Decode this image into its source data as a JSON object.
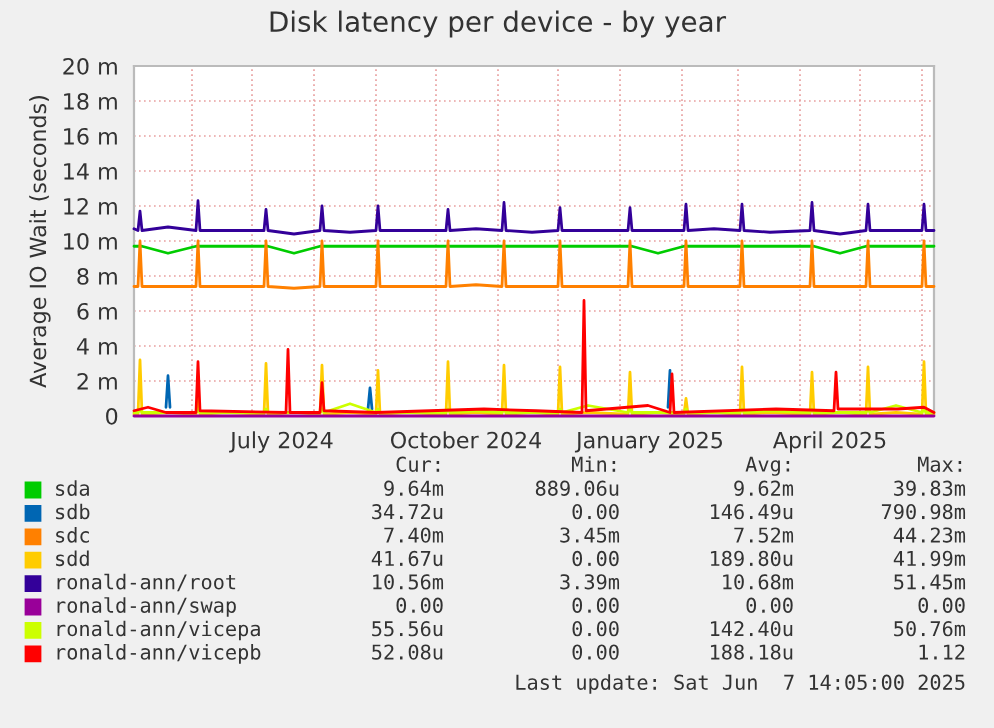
{
  "chart_data": {
    "type": "line",
    "title": "Disk latency per device - by year",
    "ylabel": "Average IO Wait (seconds)",
    "x": [
      "2024-05-03",
      "2024-05-05",
      "2024-05-06",
      "2024-05-07",
      "2024-05-20",
      "2024-06-03",
      "2024-06-04",
      "2024-06-05",
      "2024-06-18",
      "2024-07-07",
      "2024-07-08",
      "2024-07-09",
      "2024-07-22",
      "2024-08-04",
      "2024-08-05",
      "2024-08-06",
      "2024-08-19",
      "2024-09-01",
      "2024-09-02",
      "2024-09-03",
      "2024-09-16",
      "2024-10-06",
      "2024-10-07",
      "2024-10-08",
      "2024-10-21",
      "2024-11-03",
      "2024-11-04",
      "2024-11-05",
      "2024-11-18",
      "2024-12-01",
      "2024-12-02",
      "2024-12-03",
      "2024-12-16",
      "2025-01-05",
      "2025-01-06",
      "2025-01-07",
      "2025-01-20",
      "2025-02-02",
      "2025-02-03",
      "2025-02-04",
      "2025-02-17",
      "2025-03-02",
      "2025-03-03",
      "2025-03-04",
      "2025-03-17",
      "2025-04-06",
      "2025-04-07",
      "2025-04-08",
      "2025-04-21",
      "2025-05-04",
      "2025-05-05",
      "2025-05-06",
      "2025-05-19",
      "2025-06-01",
      "2025-06-02",
      "2025-06-03",
      "2025-06-07"
    ],
    "series": [
      {
        "name": "sda",
        "color": "#00cc00",
        "values": [
          9.7,
          9.7,
          9.7,
          9.7,
          9.3,
          9.7,
          9.7,
          9.7,
          9.7,
          9.7,
          9.7,
          9.7,
          9.3,
          9.7,
          9.7,
          9.7,
          9.7,
          9.7,
          9.7,
          9.7,
          9.7,
          9.7,
          9.7,
          9.7,
          9.7,
          9.7,
          9.7,
          9.7,
          9.7,
          9.7,
          9.7,
          9.7,
          9.7,
          9.7,
          9.7,
          9.7,
          9.3,
          9.7,
          9.7,
          9.7,
          9.7,
          9.7,
          9.7,
          9.7,
          9.7,
          9.7,
          9.7,
          9.7,
          9.3,
          9.7,
          9.7,
          9.7,
          9.7,
          9.7,
          9.7,
          9.7,
          9.7
        ]
      },
      {
        "name": "sdb",
        "color": "#0066b3",
        "x": [
          "2024-05-19",
          "2024-05-20",
          "2024-05-21",
          "2024-05-22",
          "2024-08-28",
          "2024-08-29",
          "2024-08-30",
          "2024-08-31",
          "2025-01-25",
          "2025-01-26"
        ],
        "values": [
          0.5,
          2.3,
          0.5,
          null,
          0.4,
          1.6,
          0.4,
          null,
          0.5,
          2.6
        ]
      },
      {
        "name": "sdc",
        "color": "#ff8000",
        "values": [
          7.4,
          7.4,
          10.0,
          7.4,
          7.4,
          7.4,
          10.0,
          7.4,
          7.4,
          7.4,
          10.0,
          7.4,
          7.3,
          7.4,
          10.0,
          7.4,
          7.4,
          7.4,
          10.0,
          7.4,
          7.4,
          7.4,
          10.0,
          7.4,
          7.5,
          7.4,
          10.0,
          7.4,
          7.4,
          7.4,
          10.0,
          7.4,
          7.4,
          7.4,
          10.0,
          7.4,
          7.4,
          7.4,
          10.0,
          7.4,
          7.4,
          7.4,
          10.0,
          7.4,
          7.4,
          7.4,
          10.0,
          7.4,
          7.4,
          7.4,
          10.0,
          7.4,
          7.4,
          7.4,
          10.0,
          7.4,
          7.4
        ]
      },
      {
        "name": "sdd",
        "color": "#ffcc00",
        "values": [
          0.1,
          0.1,
          3.2,
          0.1,
          0.2,
          0.1,
          1.0,
          0.1,
          0.2,
          0.1,
          3.0,
          0.1,
          0.2,
          0.1,
          2.9,
          0.1,
          0.2,
          0.1,
          2.6,
          0.1,
          0.2,
          0.1,
          3.1,
          0.1,
          0.2,
          0.1,
          2.9,
          0.1,
          0.2,
          0.1,
          2.8,
          0.1,
          0.2,
          0.1,
          2.5,
          0.1,
          0.2,
          0.1,
          1.0,
          0.1,
          0.2,
          0.1,
          2.8,
          0.1,
          0.2,
          0.1,
          2.5,
          0.1,
          0.2,
          0.1,
          2.8,
          0.1,
          0.2,
          0.1,
          3.1,
          0.1,
          0.1
        ]
      },
      {
        "name": "ronald-ann/root",
        "color": "#330099",
        "values": [
          10.7,
          10.6,
          11.7,
          10.6,
          10.8,
          10.6,
          12.3,
          10.6,
          10.6,
          10.6,
          11.8,
          10.6,
          10.4,
          10.6,
          12.0,
          10.6,
          10.5,
          10.6,
          12.0,
          10.6,
          10.6,
          10.6,
          11.8,
          10.6,
          10.7,
          10.6,
          12.2,
          10.6,
          10.5,
          10.6,
          11.9,
          10.6,
          10.6,
          10.6,
          11.9,
          10.6,
          10.6,
          10.6,
          12.1,
          10.6,
          10.7,
          10.6,
          12.1,
          10.6,
          10.5,
          10.6,
          12.2,
          10.6,
          10.4,
          10.6,
          12.1,
          10.6,
          10.6,
          10.6,
          12.1,
          10.6,
          10.6
        ]
      },
      {
        "name": "ronald-ann/swap",
        "color": "#990099",
        "x": [
          "2024-05-03",
          "2025-06-07"
        ],
        "values": [
          0,
          0
        ]
      },
      {
        "name": "ronald-ann/vicepa",
        "color": "#ccff00",
        "values": [
          0.2,
          0.2,
          0.4,
          0.2,
          0.2,
          0.2,
          0.4,
          0.2,
          0.2,
          0.2,
          0.4,
          0.2,
          0.2,
          0.2,
          0.4,
          0.2,
          0.7,
          0.2,
          0.4,
          0.2,
          0.2,
          0.2,
          0.4,
          0.2,
          0.3,
          0.2,
          0.4,
          0.2,
          0.2,
          0.2,
          0.4,
          0.2,
          0.6,
          0.2,
          0.4,
          0.2,
          0.2,
          0.2,
          0.4,
          0.2,
          0.2,
          0.2,
          0.4,
          0.2,
          0.3,
          0.2,
          0.4,
          0.2,
          0.2,
          0.2,
          0.4,
          0.2,
          0.6,
          0.2,
          0.4,
          0.2,
          0.2
        ]
      },
      {
        "name": "ronald-ann/vicepb",
        "color": "#ff0000",
        "x": [
          "2024-05-03",
          "2024-05-10",
          "2024-05-19",
          "2024-05-21",
          "2024-06-03",
          "2024-06-04",
          "2024-06-05",
          "2024-07-18",
          "2024-07-19",
          "2024-07-20",
          "2024-08-04",
          "2024-08-05",
          "2024-08-06",
          "2024-09-01",
          "2024-10-25",
          "2024-11-20",
          "2024-12-13",
          "2024-12-14",
          "2024-12-15",
          "2025-01-15",
          "2025-01-26",
          "2025-01-27",
          "2025-01-28",
          "2025-03-20",
          "2025-04-18",
          "2025-04-19",
          "2025-04-20",
          "2025-05-20",
          "2025-06-02",
          "2025-06-07"
        ],
        "values": [
          0.3,
          0.5,
          0.2,
          0.2,
          0.2,
          3.1,
          0.3,
          0.2,
          3.8,
          0.2,
          0.2,
          1.9,
          0.3,
          0.2,
          0.4,
          0.3,
          0.2,
          6.6,
          0.3,
          0.6,
          0.2,
          2.4,
          0.2,
          0.4,
          0.3,
          2.5,
          0.4,
          0.4,
          0.5,
          0.2
        ]
      }
    ],
    "xlim": [
      "2024-05-03",
      "2025-06-07"
    ],
    "xticks": [
      {
        "value": "2024-06-01",
        "label": null
      },
      {
        "value": "2024-07-01",
        "label": null
      },
      {
        "value": "2024-07-16",
        "label": "July 2024"
      },
      {
        "value": "2024-08-01",
        "label": null
      },
      {
        "value": "2024-09-01",
        "label": null
      },
      {
        "value": "2024-10-01",
        "label": null
      },
      {
        "value": "2024-10-16",
        "label": "October 2024"
      },
      {
        "value": "2024-11-01",
        "label": null
      },
      {
        "value": "2024-12-01",
        "label": null
      },
      {
        "value": "2025-01-01",
        "label": null
      },
      {
        "value": "2025-01-16",
        "label": "January 2025"
      },
      {
        "value": "2025-02-01",
        "label": null
      },
      {
        "value": "2025-03-01",
        "label": null
      },
      {
        "value": "2025-04-01",
        "label": null
      },
      {
        "value": "2025-04-16",
        "label": "April 2025"
      },
      {
        "value": "2025-05-01",
        "label": null
      },
      {
        "value": "2025-06-01",
        "label": null
      }
    ],
    "ylim": [
      0,
      20
    ],
    "yticks": [
      0,
      {
        "value": 2,
        "label": "2 m"
      },
      {
        "value": 4,
        "label": "4 m"
      },
      {
        "value": 6,
        "label": "6 m"
      },
      {
        "value": 8,
        "label": "8 m"
      },
      {
        "value": 10,
        "label": "10 m"
      },
      {
        "value": 12,
        "label": "12 m"
      },
      {
        "value": 14,
        "label": "14 m"
      },
      {
        "value": 16,
        "label": "16 m"
      },
      {
        "value": 18,
        "label": "18 m"
      },
      {
        "value": 20,
        "label": "20 m"
      }
    ],
    "grid": true,
    "legend": "bottom",
    "marker": "none",
    "line_style": "solid",
    "annotations": [
      "Cur:",
      "Min:",
      "Avg:",
      "Max:",
      "9.64m",
      "889.06u",
      "9.62m",
      "39.83m",
      "34.72u",
      "0.00",
      "146.49u",
      "790.98m",
      "7.40m",
      "3.45m",
      "7.52m",
      "44.23m",
      "41.67u",
      "0.00",
      "189.80u",
      "41.99m",
      "10.56m",
      "3.39m",
      "10.68m",
      "51.45m",
      "0.00",
      "0.00",
      "0.00",
      "0.00",
      "55.56u",
      "0.00",
      "142.40u",
      "50.76m",
      "52.08u",
      "0.00",
      "188.18u",
      "1.12",
      "Last update: Sat Jun  7 14:05:00 2025"
    ]
  }
}
